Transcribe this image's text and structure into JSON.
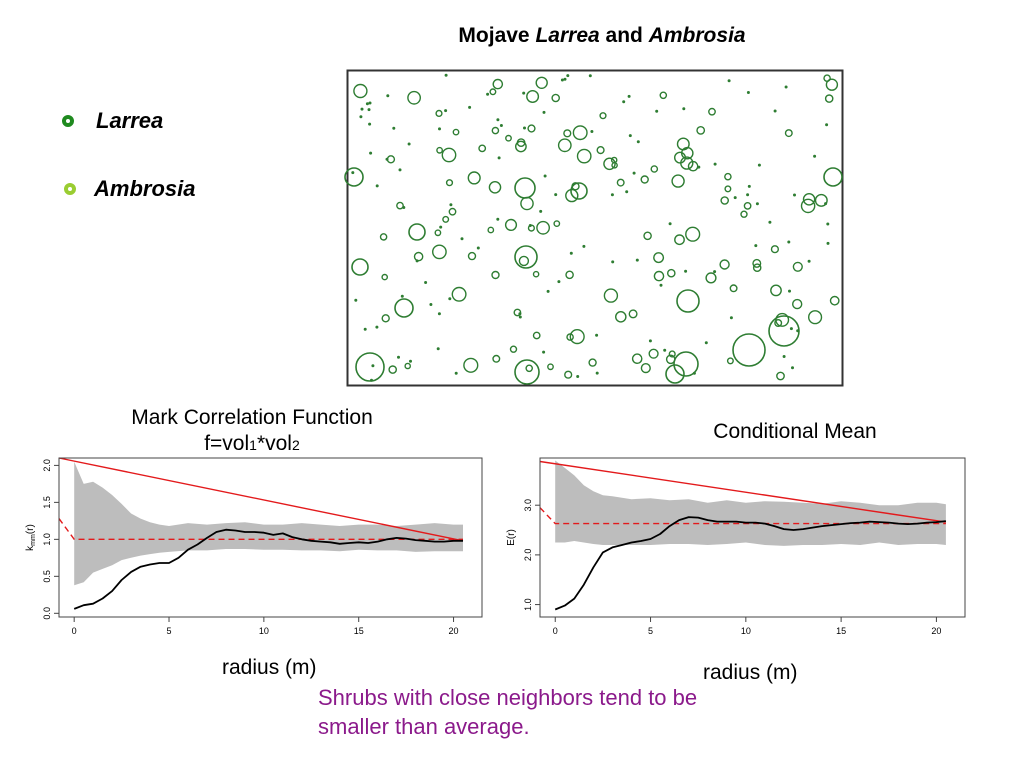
{
  "title": {
    "prefix": "Mojave",
    "larrea": "Larrea",
    "and": "and",
    "ambrosia": "Ambrosia"
  },
  "legend": {
    "larrea": {
      "label": "Larrea",
      "color": "#1f8a1f"
    },
    "ambrosia": {
      "label": "Ambrosia",
      "color": "#9acd32"
    }
  },
  "map": {
    "point_color": "#2e7d32",
    "frame_color": "#333333"
  },
  "mark_correlation": {
    "title_line1": "Mark Correlation Function",
    "title_line2_parts": [
      "f=vol",
      "1",
      "*vol",
      "2"
    ],
    "xlabel": "radius (m)",
    "ylabel_parts": [
      "k",
      "mm",
      "(r)"
    ]
  },
  "conditional_mean": {
    "title": "Conditional Mean",
    "xlabel": "radius (m)",
    "ylabel": "E(r)"
  },
  "note": "Shrubs with close neighbors tend to be smaller than average.",
  "chart_data": [
    {
      "type": "line",
      "title": "Mark Correlation Function",
      "xlabel": "radius (m)",
      "ylabel": "kmm(r)",
      "xlim": [
        -0.8,
        21.5
      ],
      "ylim": [
        -0.05,
        2.1
      ],
      "xticks": [
        "0",
        "5",
        "10",
        "15",
        "20"
      ],
      "yticks": [
        "0.0",
        "0.5",
        "1.0",
        "1.5",
        "2.0"
      ],
      "ytick_values": [
        0,
        0.5,
        1,
        1.5,
        2
      ],
      "xtick_values": [
        0,
        5,
        10,
        15,
        20
      ],
      "observed": {
        "x": [
          0,
          0.5,
          1,
          1.5,
          2,
          2.5,
          3,
          3.5,
          4,
          4.5,
          5,
          5.5,
          6,
          6.5,
          7,
          7.5,
          8,
          8.5,
          9,
          9.5,
          10,
          10.5,
          11,
          11.5,
          12,
          12.5,
          13,
          13.5,
          14,
          14.5,
          15,
          15.5,
          16,
          16.5,
          17,
          17.5,
          18,
          18.5,
          19,
          19.5,
          20,
          20.5
        ],
        "y": [
          0.06,
          0.11,
          0.13,
          0.2,
          0.3,
          0.45,
          0.56,
          0.63,
          0.66,
          0.68,
          0.68,
          0.75,
          0.86,
          0.93,
          1.02,
          1.1,
          1.13,
          1.12,
          1.1,
          1.1,
          1.09,
          1.06,
          1.08,
          1.03,
          1.0,
          0.98,
          0.97,
          0.96,
          0.94,
          0.95,
          0.96,
          0.95,
          0.97,
          1.0,
          1.02,
          1.01,
          0.99,
          0.98,
          0.97,
          0.97,
          0.98,
          0.98
        ]
      },
      "envelope": {
        "x": [
          0,
          0.5,
          1,
          1.5,
          2,
          2.5,
          3,
          3.5,
          4,
          4.5,
          5,
          6,
          7,
          8,
          9,
          10,
          11,
          12,
          13,
          14,
          15,
          16,
          17,
          18,
          19,
          20,
          20.5
        ],
        "upper": [
          2.05,
          1.75,
          1.78,
          1.7,
          1.6,
          1.48,
          1.35,
          1.28,
          1.23,
          1.2,
          1.18,
          1.22,
          1.2,
          1.22,
          1.23,
          1.2,
          1.2,
          1.22,
          1.2,
          1.18,
          1.2,
          1.2,
          1.18,
          1.2,
          1.22,
          1.2,
          1.2
        ],
        "lower": [
          0.38,
          0.42,
          0.55,
          0.6,
          0.65,
          0.72,
          0.75,
          0.78,
          0.8,
          0.82,
          0.83,
          0.85,
          0.85,
          0.87,
          0.87,
          0.86,
          0.86,
          0.85,
          0.85,
          0.84,
          0.86,
          0.85,
          0.85,
          0.83,
          0.84,
          0.84,
          0.84
        ]
      },
      "reference_line": {
        "x": [
          -0.8,
          0,
          20.5
        ],
        "y": [
          1.28,
          1.0,
          1.0
        ],
        "style": "dashed",
        "color": "#e31a1c"
      },
      "trend_line": {
        "x": [
          -0.8,
          20.5
        ],
        "y": [
          2.1,
          0.98
        ],
        "color": "#e31a1c"
      }
    },
    {
      "type": "line",
      "title": "Conditional Mean",
      "xlabel": "radius (m)",
      "ylabel": "E(r)",
      "xlim": [
        -0.8,
        21.5
      ],
      "ylim": [
        0.75,
        3.95
      ],
      "xticks": [
        "0",
        "5",
        "10",
        "15",
        "20"
      ],
      "yticks": [
        "1.0",
        "2.0",
        "3.0"
      ],
      "ytick_values": [
        1,
        2,
        3
      ],
      "xtick_values": [
        0,
        5,
        10,
        15,
        20
      ],
      "observed": {
        "x": [
          0,
          0.5,
          1,
          1.5,
          2,
          2.5,
          3,
          3.5,
          4,
          4.5,
          5,
          5.5,
          6,
          6.5,
          7,
          7.5,
          8,
          8.5,
          9,
          9.5,
          10,
          10.5,
          11,
          11.5,
          12,
          12.5,
          13,
          13.5,
          14,
          14.5,
          15,
          15.5,
          16,
          16.5,
          17,
          17.5,
          18,
          18.5,
          19,
          19.5,
          20,
          20.5
        ],
        "y": [
          0.9,
          0.98,
          1.12,
          1.4,
          1.75,
          2.05,
          2.15,
          2.2,
          2.25,
          2.28,
          2.32,
          2.42,
          2.58,
          2.7,
          2.76,
          2.75,
          2.7,
          2.67,
          2.67,
          2.67,
          2.65,
          2.65,
          2.63,
          2.58,
          2.52,
          2.5,
          2.52,
          2.55,
          2.58,
          2.6,
          2.62,
          2.64,
          2.65,
          2.67,
          2.66,
          2.65,
          2.63,
          2.62,
          2.63,
          2.65,
          2.66,
          2.68
        ]
      },
      "envelope": {
        "x": [
          0,
          0.5,
          1,
          1.5,
          2,
          2.5,
          3,
          3.5,
          4,
          5,
          6,
          7,
          8,
          9,
          10,
          11,
          12,
          13,
          14,
          15,
          16,
          17,
          18,
          19,
          20,
          20.5
        ],
        "upper": [
          3.9,
          3.75,
          3.6,
          3.4,
          3.28,
          3.2,
          3.18,
          3.15,
          3.12,
          3.14,
          3.1,
          3.12,
          3.05,
          3.1,
          3.05,
          3.08,
          3.07,
          3.05,
          3.03,
          3.08,
          3.05,
          3.0,
          3.0,
          3.05,
          3.05,
          3.02
        ],
        "lower": [
          2.25,
          2.25,
          2.28,
          2.25,
          2.22,
          2.2,
          2.2,
          2.2,
          2.2,
          2.2,
          2.22,
          2.22,
          2.2,
          2.22,
          2.25,
          2.2,
          2.18,
          2.2,
          2.2,
          2.22,
          2.2,
          2.25,
          2.2,
          2.22,
          2.22,
          2.2
        ]
      },
      "reference_line": {
        "x": [
          -0.8,
          0,
          20.5
        ],
        "y": [
          2.95,
          2.63,
          2.63
        ],
        "style": "dashed",
        "color": "#e31a1c"
      },
      "trend_line": {
        "x": [
          -0.8,
          20.5
        ],
        "y": [
          3.88,
          2.66
        ],
        "color": "#e31a1c"
      }
    }
  ]
}
